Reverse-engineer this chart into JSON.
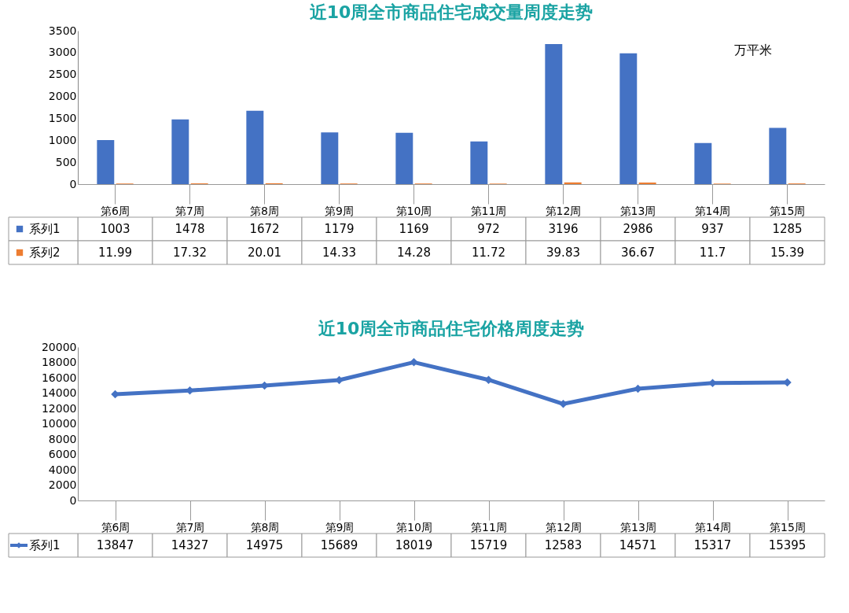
{
  "chart_data": [
    {
      "type": "bar",
      "title": "近10周全市商品住宅成交量周度走势",
      "annotations": [
        "万平米"
      ],
      "categories": [
        "第6周",
        "第7周",
        "第8周",
        "第9周",
        "第10周",
        "第11周",
        "第12周",
        "第13周",
        "第14周",
        "第15周"
      ],
      "series": [
        {
          "name": "系列1",
          "color": "#4472c4",
          "values": [
            1003,
            1478,
            1672,
            1179,
            1169,
            972,
            3196,
            2986,
            937,
            1285
          ]
        },
        {
          "name": "系列2",
          "color": "#ed7d31",
          "values": [
            11.99,
            17.32,
            20.01,
            14.33,
            14.28,
            11.72,
            39.83,
            36.67,
            11.7,
            15.39
          ]
        }
      ],
      "ylim": [
        0,
        3500
      ],
      "yticks": [
        0,
        500,
        1000,
        1500,
        2000,
        2500,
        3000,
        3500
      ],
      "data_labels": true,
      "legend": "bottom",
      "grid": false
    },
    {
      "type": "line",
      "title": "近10周全市商品住宅价格周度走势",
      "categories": [
        "第6周",
        "第7周",
        "第8周",
        "第9周",
        "第10周",
        "第11周",
        "第12周",
        "第13周",
        "第14周",
        "第15周"
      ],
      "series": [
        {
          "name": "系列1",
          "color": "#4472c4",
          "values": [
            13847,
            14327,
            14975,
            15689,
            18019,
            15719,
            12583,
            14571,
            15317,
            15395
          ]
        }
      ],
      "ylim": [
        0,
        20000
      ],
      "yticks": [
        0,
        2000,
        4000,
        6000,
        8000,
        10000,
        12000,
        14000,
        16000,
        18000,
        20000
      ],
      "data_labels": true,
      "legend": "bottom",
      "marker": "diamond",
      "line_style": "solid",
      "grid": false
    }
  ]
}
